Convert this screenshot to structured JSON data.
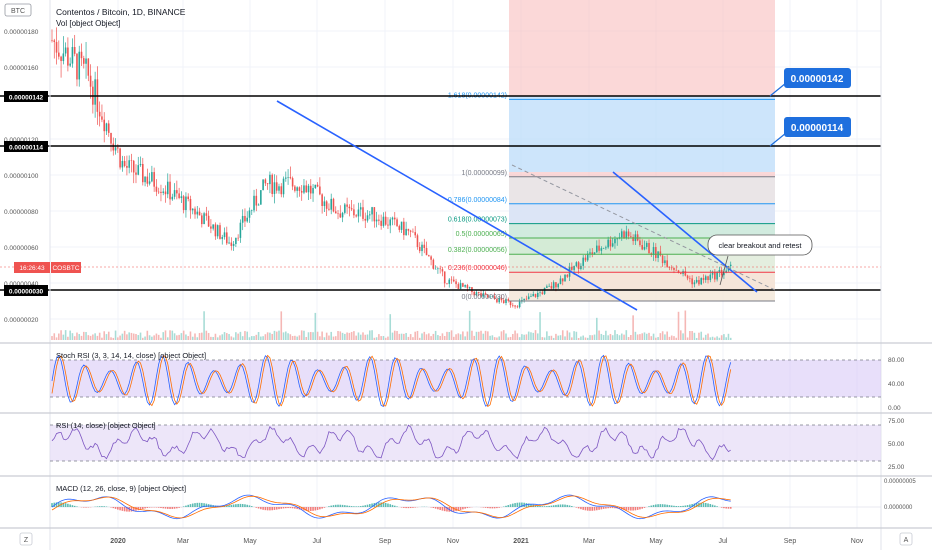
{
  "header": {
    "symbol_badge": "BTC",
    "title": "Contentos / Bitcoin, 1D, BINANCE",
    "volume_label": "Vol [object Object]"
  },
  "price_axis": {
    "ticks": [
      "0.00000180",
      "0.00000160",
      "0.00000120",
      "0.00000100",
      "0.00000080",
      "0.00000060",
      "0.00000040",
      "0.00000020"
    ],
    "highlight_levels": [
      "0.00000142",
      "0.00000114",
      "0.00000030"
    ],
    "countdown": "16:26:43",
    "ticker_tag": "COSBTC"
  },
  "fib_levels": [
    {
      "label": "1.618(0.00000142)",
      "value": 1.42e-06,
      "color": "#2196f3"
    },
    {
      "label": "1(0.00000099)",
      "value": 9.9e-07,
      "color": "#787b86"
    },
    {
      "label": "0.786(0.00000084)",
      "value": 8.4e-07,
      "color": "#2196f3"
    },
    {
      "label": "0.618(0.00000073)",
      "value": 7.3e-07,
      "color": "#089981"
    },
    {
      "label": "0.5(0.00000065)",
      "value": 6.5e-07,
      "color": "#4caf50"
    },
    {
      "label": "0.382(0.00000056)",
      "value": 5.6e-07,
      "color": "#4caf50"
    },
    {
      "label": "0.236(0.00000046)",
      "value": 4.6e-07,
      "color": "#f23645"
    },
    {
      "label": "0(0.00000030)",
      "value": 3e-07,
      "color": "#787b86"
    }
  ],
  "callouts": {
    "target_high": "0.00000142",
    "target_low": "0.00000114",
    "note": "clear breakout and retest"
  },
  "indicators": {
    "stoch_label": "Stoch RSI (3, 3, 14, 14, close) [object Object]",
    "stoch_ticks": [
      "80.00",
      "40.00",
      "0.00"
    ],
    "rsi_label": "RSI (14, close) [object Object]",
    "rsi_ticks": [
      "75.00",
      "50.00",
      "25.00"
    ],
    "macd_label": "MACD (12, 26, close, 9) [object Object]",
    "macd_ticks": [
      "0.00000005",
      "0.0000000"
    ]
  },
  "time_axis": {
    "labels": [
      "2020",
      "Mar",
      "May",
      "Jul",
      "Sep",
      "Nov",
      "2021",
      "Mar",
      "May",
      "Jul",
      "Sep",
      "Nov"
    ],
    "left_button": "Z",
    "right_button": "A"
  },
  "chart_data": {
    "type": "line",
    "title": "Contentos / Bitcoin, 1D, BINANCE",
    "x": [
      "2019-12",
      "2020-01",
      "2020-02",
      "2020-03",
      "2020-04",
      "2020-05",
      "2020-06",
      "2020-07",
      "2020-08",
      "2020-09",
      "2020-10",
      "2020-11",
      "2020-12",
      "2021-01",
      "2021-02",
      "2021-03",
      "2021-04",
      "2021-05",
      "2021-06",
      "2021-07"
    ],
    "series": [
      {
        "values": [
          1.75e-06,
          1.55e-06,
          1.05e-06,
          9.5e-07,
          8e-07,
          6.2e-07,
          9.5e-07,
          9.5e-07,
          8e-07,
          7.8e-07,
          6.8e-07,
          4.2e-07,
          3.3e-07,
          2.8e-07,
          3.8e-07,
          5.5e-07,
          6.8e-07,
          5.5e-07,
          4e-07,
          4.8e-07
        ]
      }
    ],
    "ylim": [
      1.5e-07,
      1.95e-06
    ],
    "horizontal_levels": [
      1.42e-06,
      1.14e-06,
      3e-07
    ],
    "colors": {
      "up": "#26a69a",
      "down": "#ef5350",
      "trendline": "#2962ff"
    }
  }
}
